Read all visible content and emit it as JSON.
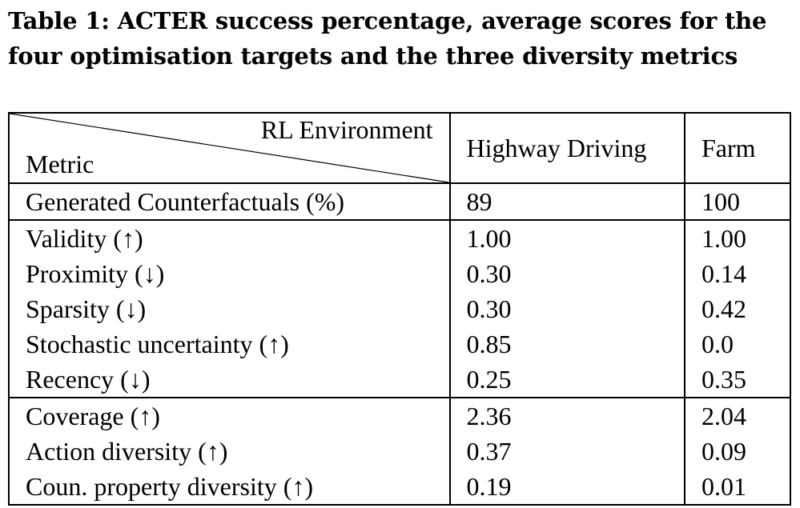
{
  "caption": {
    "line1": "Table 1: ACTER success percentage, average scores for the",
    "line2": "four optimisation targets and the three diversity metrics"
  },
  "table": {
    "header": {
      "diag_top": "RL Environment",
      "diag_bottom": "Metric",
      "columns": [
        "Highway Driving",
        "Farm"
      ]
    },
    "groups": [
      {
        "rows": [
          {
            "metric": "Generated Counterfactuals (%)",
            "highway": "89",
            "farm": "100"
          }
        ]
      },
      {
        "rows": [
          {
            "metric": "Validity (↑)",
            "highway": "1.00",
            "farm": "1.00"
          },
          {
            "metric": "Proximity (↓)",
            "highway": "0.30",
            "farm": "0.14"
          },
          {
            "metric": "Sparsity (↓)",
            "highway": "0.30",
            "farm": "0.42"
          },
          {
            "metric": "Stochastic uncertainty (↑)",
            "highway": "0.85",
            "farm": "0.0"
          },
          {
            "metric": "Recency (↓)",
            "highway": "0.25",
            "farm": "0.35"
          }
        ]
      },
      {
        "rows": [
          {
            "metric": "Coverage (↑)",
            "highway": "2.36",
            "farm": "2.04"
          },
          {
            "metric": "Action diversity (↑)",
            "highway": "0.37",
            "farm": "0.09"
          },
          {
            "metric": "Coun. property diversity (↑)",
            "highway": "0.19",
            "farm": "0.01"
          }
        ]
      }
    ]
  }
}
